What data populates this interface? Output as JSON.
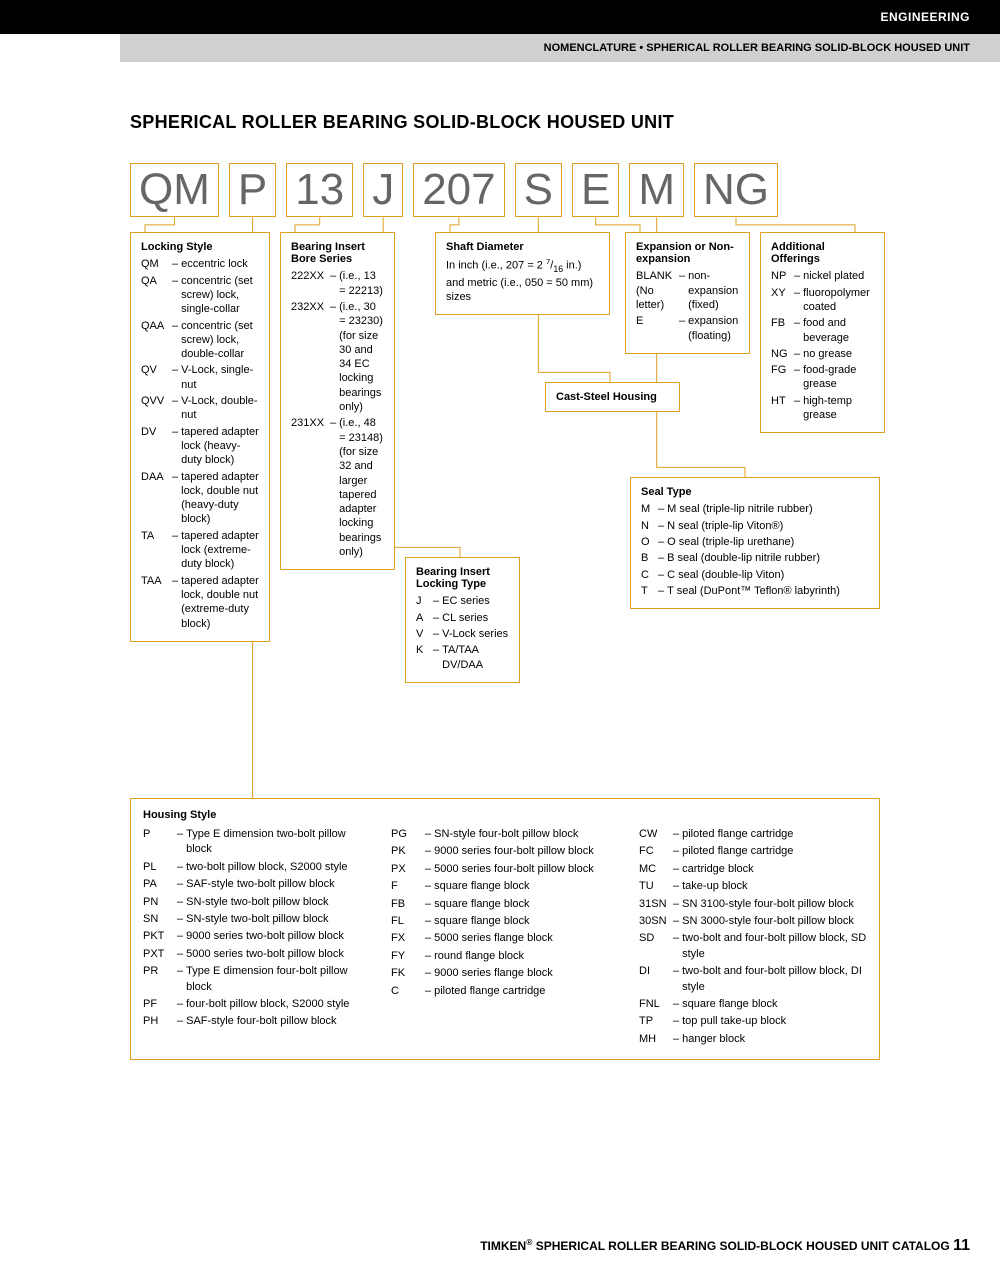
{
  "header": {
    "black_bar": "ENGINEERING",
    "grey_bar": "NOMENCLATURE • SPHERICAL ROLLER BEARING SOLID-BLOCK HOUSED UNIT"
  },
  "title": "SPHERICAL ROLLER BEARING SOLID-BLOCK HOUSED UNIT",
  "code_boxes": [
    "QM",
    "P",
    "13",
    "J",
    "207",
    "S",
    "E",
    "M",
    "NG"
  ],
  "locking_style": {
    "title": "Locking Style",
    "items": [
      {
        "c": "QM",
        "t": "eccentric lock"
      },
      {
        "c": "QA",
        "t": "concentric (set screw) lock, single-collar"
      },
      {
        "c": "QAA",
        "t": "concentric (set screw) lock, double-collar"
      },
      {
        "c": "QV",
        "t": "V-Lock, single-nut"
      },
      {
        "c": "QVV",
        "t": "V-Lock, double-nut"
      },
      {
        "c": "DV",
        "t": "tapered adapter lock (heavy-duty block)"
      },
      {
        "c": "DAA",
        "t": "tapered adapter lock, double nut (heavy-duty block)"
      },
      {
        "c": "TA",
        "t": "tapered adapter lock (extreme-duty block)"
      },
      {
        "c": "TAA",
        "t": "tapered adapter lock, double nut (extreme-duty block)"
      }
    ]
  },
  "bore_series": {
    "title": "Bearing Insert Bore Series",
    "items": [
      {
        "c": "222XX",
        "t": "(i.e., 13 = 22213)"
      },
      {
        "c": "232XX",
        "t": "(i.e., 30 = 23230) (for size 30 and 34 EC locking bearings only)"
      },
      {
        "c": "231XX",
        "t": "(i.e., 48 = 23148) (for size 32 and larger tapered adapter locking bearings only)"
      }
    ]
  },
  "locking_type": {
    "title": "Bearing Insert Locking Type",
    "items": [
      {
        "c": "J",
        "t": "EC series"
      },
      {
        "c": "A",
        "t": "CL series"
      },
      {
        "c": "V",
        "t": "V-Lock series"
      },
      {
        "c": "K",
        "t": "TA/TAA DV/DAA"
      }
    ]
  },
  "shaft_diameter": {
    "title": "Shaft Diameter",
    "text": "In inch (i.e., 207 = 2 7/16 in.) and metric (i.e., 050 = 50 mm) sizes"
  },
  "cast_steel": {
    "title": "Cast-Steel Housing"
  },
  "expansion": {
    "title": "Expansion or Non-expansion",
    "items": [
      {
        "c": "BLANK (No letter)",
        "t": "non-expansion (fixed)"
      },
      {
        "c": "E",
        "t": "expansion (floating)"
      }
    ]
  },
  "seal_type": {
    "title": "Seal Type",
    "items": [
      {
        "c": "M",
        "t": "M seal (triple-lip nitrile rubber)"
      },
      {
        "c": "N",
        "t": "N seal (triple-lip Viton®)"
      },
      {
        "c": "O",
        "t": "O seal (triple-lip urethane)"
      },
      {
        "c": "B",
        "t": "B seal (double-lip nitrile rubber)"
      },
      {
        "c": "C",
        "t": "C seal (double-lip Viton)"
      },
      {
        "c": "T",
        "t": "T seal (DuPont™ Teflon® labyrinth)"
      }
    ]
  },
  "additional": {
    "title": "Additional Offerings",
    "items": [
      {
        "c": "NP",
        "t": "nickel plated"
      },
      {
        "c": "XY",
        "t": "fluoropolymer coated"
      },
      {
        "c": "FB",
        "t": "food and beverage"
      },
      {
        "c": "NG",
        "t": "no grease"
      },
      {
        "c": "FG",
        "t": "food-grade grease"
      },
      {
        "c": "HT",
        "t": "high-temp grease"
      }
    ]
  },
  "housing": {
    "title": "Housing Style",
    "col1": [
      {
        "c": "P",
        "t": "Type E dimension two-bolt pillow block"
      },
      {
        "c": "PL",
        "t": "two-bolt pillow block, S2000 style"
      },
      {
        "c": "PA",
        "t": "SAF-style two-bolt pillow block"
      },
      {
        "c": "PN",
        "t": "SN-style two-bolt pillow block"
      },
      {
        "c": "SN",
        "t": "SN-style two-bolt pillow block"
      },
      {
        "c": "PKT",
        "t": "9000 series two-bolt pillow block"
      },
      {
        "c": "PXT",
        "t": "5000 series two-bolt pillow block"
      },
      {
        "c": "PR",
        "t": "Type E dimension four-bolt pillow block"
      },
      {
        "c": "PF",
        "t": "four-bolt pillow block, S2000 style"
      },
      {
        "c": "PH",
        "t": "SAF-style four-bolt pillow block"
      }
    ],
    "col2": [
      {
        "c": "PG",
        "t": "SN-style four-bolt pillow block"
      },
      {
        "c": "PK",
        "t": "9000 series four-bolt pillow block"
      },
      {
        "c": "PX",
        "t": "5000 series four-bolt pillow block"
      },
      {
        "c": "F",
        "t": "square flange block"
      },
      {
        "c": "FB",
        "t": "square flange block"
      },
      {
        "c": "FL",
        "t": "square flange block"
      },
      {
        "c": "FX",
        "t": "5000 series flange block"
      },
      {
        "c": "FY",
        "t": "round flange block"
      },
      {
        "c": "FK",
        "t": "9000 series flange block"
      },
      {
        "c": "C",
        "t": "piloted flange cartridge"
      }
    ],
    "col3": [
      {
        "c": "CW",
        "t": "piloted flange cartridge"
      },
      {
        "c": "FC",
        "t": "piloted flange cartridge"
      },
      {
        "c": "MC",
        "t": "cartridge block"
      },
      {
        "c": "TU",
        "t": "take-up block"
      },
      {
        "c": "31SN",
        "t": "SN 3100-style four-bolt pillow block"
      },
      {
        "c": "30SN",
        "t": "SN 3000-style four-bolt pillow block"
      },
      {
        "c": "SD",
        "t": "two-bolt and four-bolt pillow block, SD style"
      },
      {
        "c": "DI",
        "t": "two-bolt and four-bolt pillow block, DI style"
      },
      {
        "c": "FNL",
        "t": "square flange block"
      },
      {
        "c": "TP",
        "t": "top pull take-up block"
      },
      {
        "c": "MH",
        "t": "hanger block"
      }
    ]
  },
  "footer": {
    "text": "TIMKEN® SPHERICAL ROLLER BEARING SOLID-BLOCK HOUSED UNIT CATALOG",
    "page": "11"
  },
  "colors": {
    "border": "#e0a020",
    "code_text": "#666666",
    "black": "#000000"
  }
}
